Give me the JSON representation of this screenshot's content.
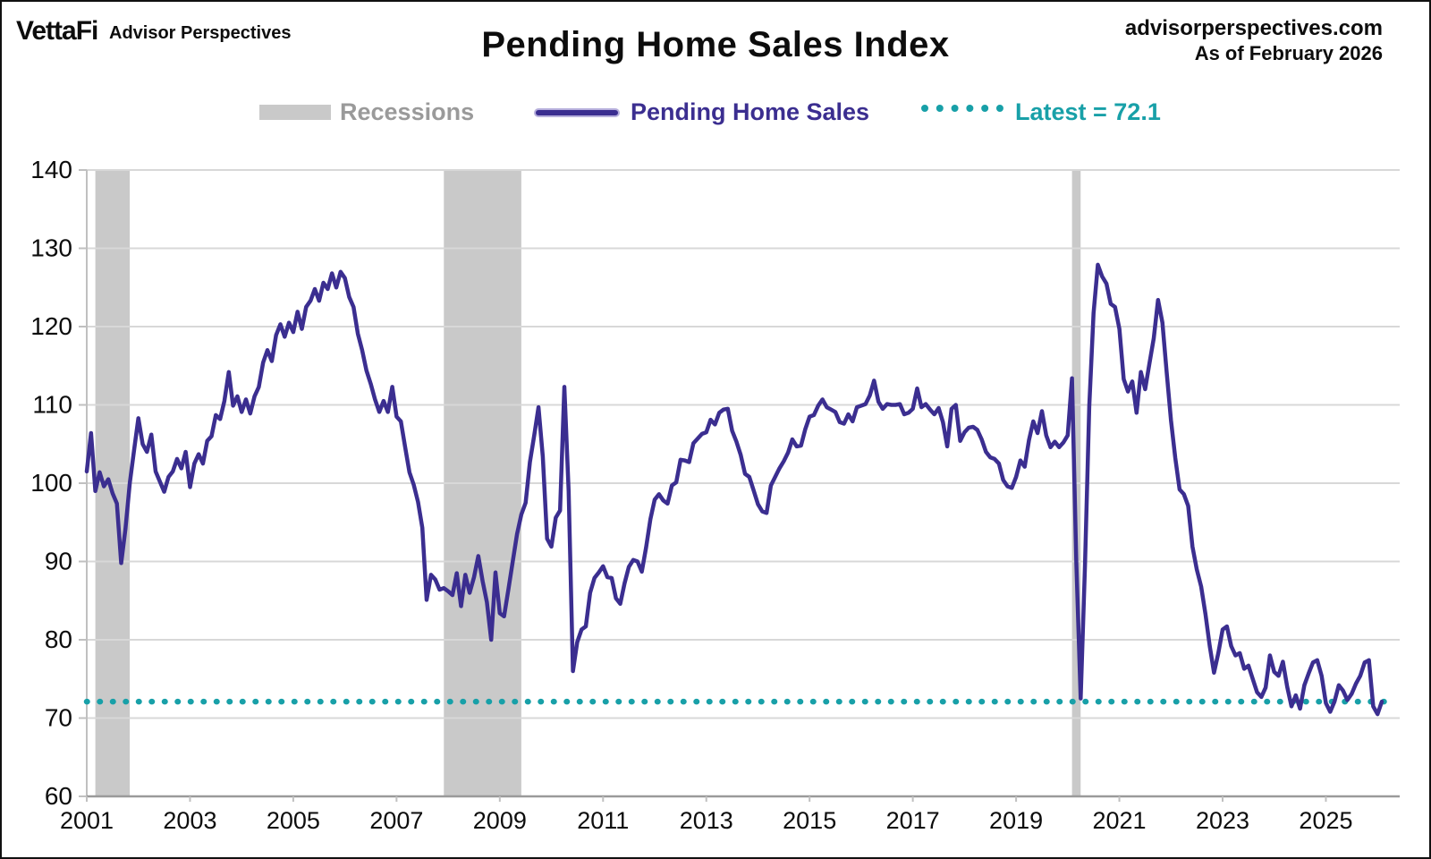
{
  "header": {
    "logo_text": "VettaFi",
    "logo_subtext": "Advisor Perspectives",
    "title": "Pending Home Sales Index",
    "site_url": "advisorperspectives.com",
    "as_of": "As of February 2026"
  },
  "legend": {
    "recessions_label": "Recessions",
    "series_label": "Pending Home Sales",
    "latest_label": "Latest = 72.1"
  },
  "colors": {
    "series": "#3b2e90",
    "latest_dotted": "#18a0a8",
    "recession_band": "#c9c9c9",
    "gridline": "#d8d8d8",
    "axis_line": "#9a9a9a",
    "tick": "#c0c0c0",
    "axis_text": "#0d0d0d"
  },
  "chart_data": {
    "type": "line",
    "title": "Pending Home Sales Index",
    "frequency": "monthly",
    "start_month": "2001-01",
    "end_month": "2026-02",
    "latest_value": 72.1,
    "ylim": [
      60,
      140
    ],
    "y_ticks": [
      60,
      70,
      80,
      90,
      100,
      110,
      120,
      130,
      140
    ],
    "x_tick_years": [
      2001,
      2003,
      2005,
      2007,
      2009,
      2011,
      2013,
      2015,
      2017,
      2019,
      2021,
      2023,
      2025
    ],
    "grid": "horizontal",
    "legend_position": "top",
    "recessions": [
      {
        "start": "2001-03",
        "end": "2001-11"
      },
      {
        "start": "2007-12",
        "end": "2009-06"
      },
      {
        "start": "2020-02",
        "end": "2020-04"
      }
    ],
    "series": [
      {
        "name": "Pending Home Sales",
        "values": [
          101.5,
          106.4,
          99.0,
          101.4,
          99.6,
          100.5,
          98.7,
          97.4,
          89.8,
          94.2,
          100.0,
          104.2,
          108.3,
          105.0,
          104.0,
          106.2,
          101.5,
          100.2,
          98.9,
          100.8,
          101.5,
          103.1,
          101.9,
          104.0,
          99.5,
          102.5,
          103.7,
          102.5,
          105.4,
          106.0,
          108.7,
          108.2,
          110.5,
          114.2,
          109.9,
          111.1,
          109.1,
          110.7,
          108.9,
          111.1,
          112.3,
          115.4,
          117.0,
          115.6,
          118.9,
          120.3,
          118.7,
          120.5,
          119.3,
          121.9,
          119.7,
          122.5,
          123.3,
          124.8,
          123.3,
          125.6,
          124.8,
          126.8,
          125.0,
          127.0,
          126.2,
          123.8,
          122.5,
          119.1,
          117.0,
          114.4,
          112.7,
          110.7,
          109.1,
          110.5,
          109.1,
          112.3,
          108.5,
          107.9,
          104.6,
          101.4,
          99.8,
          97.6,
          94.3,
          85.1,
          88.3,
          87.7,
          86.4,
          86.6,
          86.2,
          85.7,
          88.5,
          84.3,
          88.3,
          86.0,
          88.0,
          90.7,
          87.5,
          84.8,
          80.0,
          88.6,
          83.4,
          83.0,
          86.4,
          90.0,
          93.5,
          96.0,
          97.5,
          102.7,
          106.1,
          109.7,
          103.4,
          92.9,
          91.9,
          95.6,
          96.5,
          112.3,
          99.0,
          76.0,
          79.7,
          81.3,
          81.7,
          86.0,
          87.9,
          88.6,
          89.4,
          88.0,
          87.9,
          85.3,
          84.6,
          87.2,
          89.3,
          90.2,
          90.0,
          88.7,
          91.8,
          95.4,
          97.9,
          98.6,
          97.8,
          97.4,
          99.7,
          100.1,
          103.0,
          102.9,
          102.7,
          105.1,
          105.7,
          106.3,
          106.5,
          108.1,
          107.5,
          109.0,
          109.4,
          109.5,
          106.7,
          105.3,
          103.6,
          101.2,
          100.8,
          99.1,
          97.3,
          96.4,
          96.2,
          99.7,
          100.8,
          101.9,
          102.8,
          103.9,
          105.6,
          104.7,
          104.8,
          106.9,
          108.5,
          108.7,
          109.9,
          110.7,
          109.7,
          109.4,
          109.1,
          107.8,
          107.6,
          108.8,
          107.9,
          109.7,
          109.9,
          110.1,
          111.2,
          113.1,
          110.4,
          109.5,
          110.1,
          110.0,
          110.0,
          110.1,
          108.8,
          109.0,
          109.5,
          112.1,
          109.7,
          110.1,
          109.4,
          108.8,
          109.6,
          107.8,
          104.7,
          109.5,
          110.0,
          105.4,
          106.5,
          107.1,
          107.2,
          106.8,
          105.6,
          104.0,
          103.3,
          103.1,
          102.5,
          100.4,
          99.6,
          99.4,
          100.8,
          102.9,
          102.1,
          105.5,
          107.9,
          106.4,
          109.2,
          106.1,
          104.6,
          105.3,
          104.6,
          105.2,
          106.1,
          113.4,
          90.0,
          72.5,
          89.4,
          109.8,
          121.7,
          127.9,
          126.4,
          125.5,
          122.9,
          122.5,
          119.7,
          113.3,
          111.7,
          113.0,
          109.0,
          114.2,
          112.0,
          115.3,
          118.5,
          123.4,
          120.5,
          114.1,
          108.0,
          103.2,
          99.2,
          98.6,
          97.1,
          91.9,
          89.0,
          86.8,
          83.3,
          79.2,
          75.8,
          78.3,
          81.3,
          81.7,
          79.2,
          78.0,
          78.3,
          76.3,
          76.7,
          75.0,
          73.3,
          72.7,
          73.9,
          78.0,
          75.9,
          75.4,
          77.2,
          74.0,
          71.5,
          72.9,
          71.2,
          74.2,
          75.7,
          77.1,
          77.4,
          75.4,
          71.9,
          70.8,
          72.1,
          74.2,
          73.5,
          72.3,
          73.1,
          74.4,
          75.4,
          77.1,
          77.4,
          71.5,
          70.5,
          72.1
        ]
      }
    ]
  }
}
